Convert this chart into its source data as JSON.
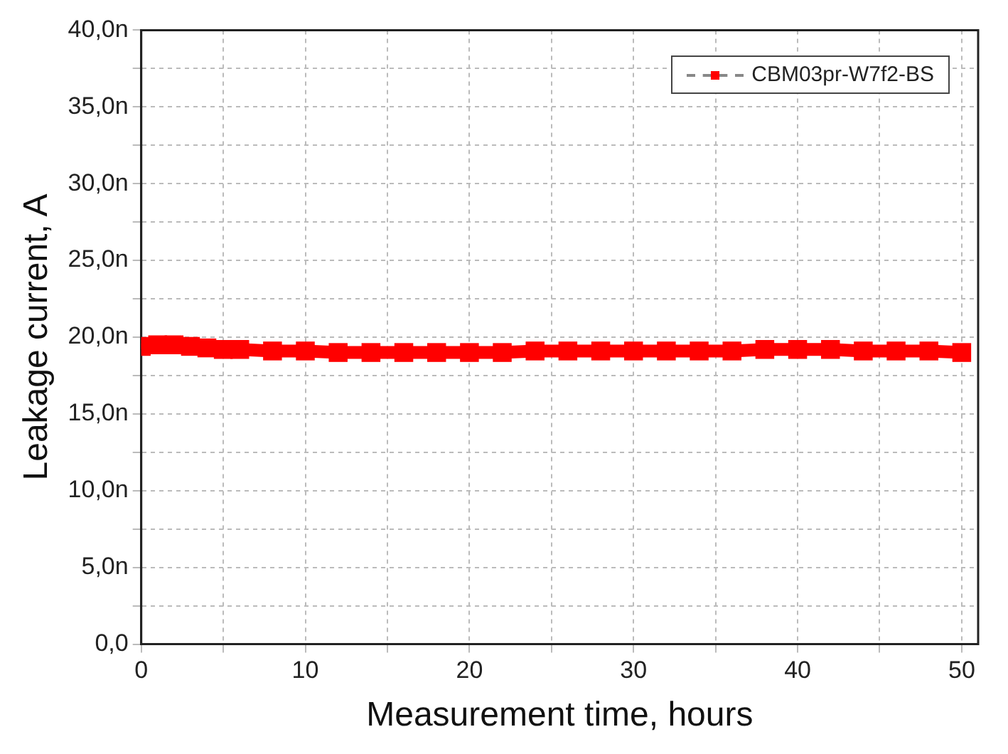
{
  "chart_data": {
    "type": "line",
    "xlabel": "Measurement time, hours",
    "ylabel": "Leakage current, A",
    "series": [
      {
        "name": "CBM03pr-W7f2-BS",
        "color": "#ff0000",
        "x": [
          0,
          1,
          2,
          3,
          4,
          5,
          6,
          8,
          10,
          12,
          14,
          16,
          18,
          20,
          22,
          24,
          26,
          28,
          30,
          32,
          34,
          36,
          38,
          40,
          42,
          44,
          46,
          48,
          50
        ],
        "values": [
          19.4,
          19.5,
          19.5,
          19.4,
          19.3,
          19.2,
          19.2,
          19.1,
          19.1,
          19.0,
          19.0,
          19.0,
          19.0,
          19.0,
          19.0,
          19.1,
          19.1,
          19.1,
          19.1,
          19.1,
          19.1,
          19.1,
          19.2,
          19.2,
          19.2,
          19.1,
          19.1,
          19.1,
          19.0
        ]
      }
    ],
    "xlim": [
      0,
      51
    ],
    "xticks": [
      0,
      {
        "value": 5,
        "label": null
      },
      10,
      {
        "value": 15,
        "label": null
      },
      20,
      {
        "value": 25,
        "label": null
      },
      30,
      {
        "value": 35,
        "label": null
      },
      40,
      {
        "value": 45,
        "label": null
      },
      50
    ],
    "ylim": [
      0,
      40
    ],
    "yticks": [
      {
        "value": 0,
        "label": "0,0"
      },
      {
        "value": 2.5,
        "label": null
      },
      {
        "value": 5,
        "label": "5,0n"
      },
      {
        "value": 7.5,
        "label": null
      },
      {
        "value": 10,
        "label": "10,0n"
      },
      {
        "value": 12.5,
        "label": null
      },
      {
        "value": 15,
        "label": "15,0n"
      },
      {
        "value": 17.5,
        "label": null
      },
      {
        "value": 20,
        "label": "20,0n"
      },
      {
        "value": 22.5,
        "label": null
      },
      {
        "value": 25,
        "label": "25,0n"
      },
      {
        "value": 27.5,
        "label": null
      },
      {
        "value": 30,
        "label": "30,0n"
      },
      {
        "value": 32.5,
        "label": null
      },
      {
        "value": 35,
        "label": "35,0n"
      },
      {
        "value": 37.5,
        "label": null
      },
      {
        "value": 40,
        "label": "40,0n"
      }
    ],
    "grid": true,
    "legend": "top right",
    "marker": "square"
  }
}
